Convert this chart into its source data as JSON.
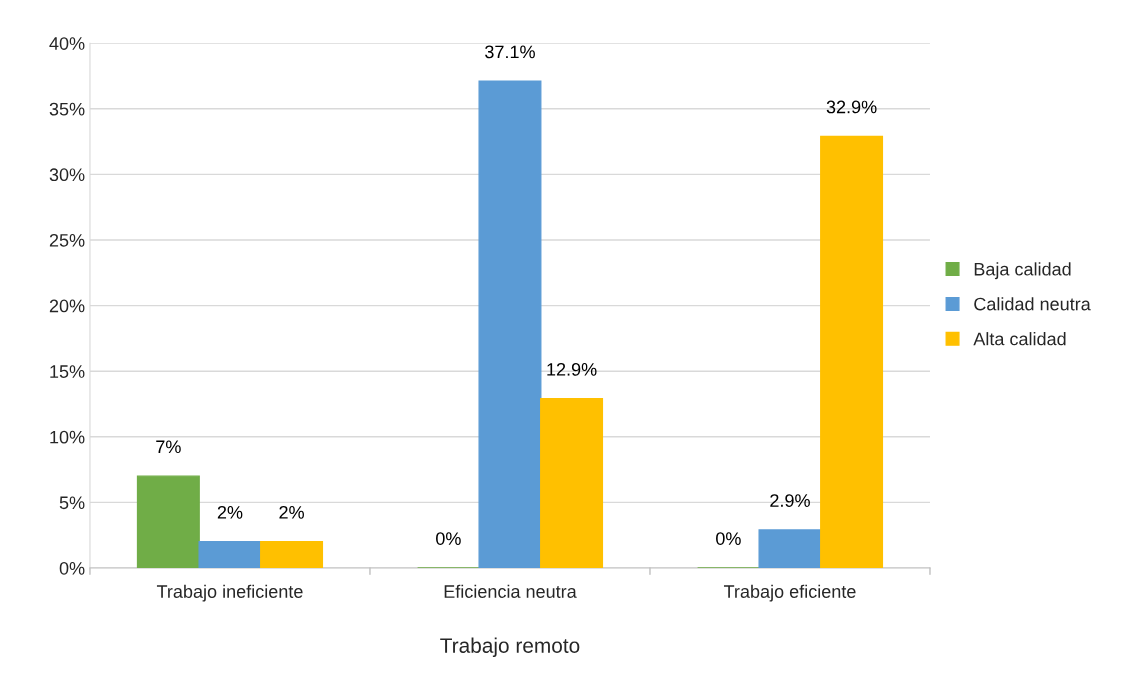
{
  "chart_data": {
    "type": "bar",
    "xlabel": "Trabajo remoto",
    "categories": [
      "Trabajo ineficiente",
      "Eficiencia neutra",
      "Trabajo eficiente"
    ],
    "series": [
      {
        "name": "Baja calidad",
        "color": "#70ad47",
        "values": [
          7,
          0,
          0
        ],
        "value_labels": [
          "7%",
          "0%",
          "0%"
        ]
      },
      {
        "name": "Calidad neutra",
        "color": "#5b9bd5",
        "values": [
          2,
          37.1,
          2.9
        ],
        "value_labels": [
          "2%",
          "37.1%",
          "2.9%"
        ]
      },
      {
        "name": "Alta calidad",
        "color": "#ffc000",
        "values": [
          2,
          12.9,
          32.9
        ],
        "value_labels": [
          "2%",
          "12.9%",
          "32.9%"
        ]
      }
    ],
    "ylim": [
      0,
      40
    ],
    "yticks": [
      {
        "value": 0,
        "label": "0%"
      },
      {
        "value": 5,
        "label": "5%"
      },
      {
        "value": 10,
        "label": "10%"
      },
      {
        "value": 15,
        "label": "15%"
      },
      {
        "value": 20,
        "label": "20%"
      },
      {
        "value": 25,
        "label": "25%"
      },
      {
        "value": 30,
        "label": "30%"
      },
      {
        "value": 35,
        "label": "35%"
      },
      {
        "value": 40,
        "label": "40%"
      }
    ],
    "grid": "y",
    "legend": "right"
  }
}
